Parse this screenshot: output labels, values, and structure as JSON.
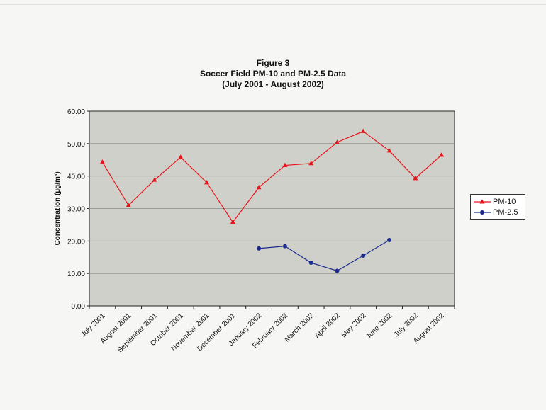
{
  "figure": {
    "label": "Figure 3",
    "title": "Soccer Field PM-10 and PM-2.5 Data",
    "subtitle": "(July 2001 - August 2002)"
  },
  "chart_data": {
    "type": "line",
    "ylabel": "Concentration (µg/m³)",
    "xlabel": "",
    "ylim": [
      0,
      60
    ],
    "yticks": [
      "0.00",
      "10.00",
      "20.00",
      "30.00",
      "40.00",
      "50.00",
      "60.00"
    ],
    "grid": true,
    "legend_position": "right",
    "categories": [
      "July 2001",
      "August 2001",
      "September 2001",
      "October 2001",
      "November 2001",
      "December 2001",
      "January 2002",
      "February 2002",
      "March 2002",
      "April 2002",
      "May 2002",
      "June 2002",
      "July 2002",
      "August 2002"
    ],
    "series": [
      {
        "name": "PM-10",
        "color": "#e8141b",
        "marker": "triangle",
        "values": [
          44.3,
          31.0,
          38.8,
          45.8,
          38.0,
          25.8,
          36.5,
          43.3,
          43.9,
          50.4,
          53.8,
          47.8,
          39.3,
          46.5
        ]
      },
      {
        "name": "PM-2.5",
        "color": "#1c2c8c",
        "marker": "circle",
        "values": [
          null,
          null,
          null,
          null,
          null,
          null,
          17.7,
          18.4,
          13.3,
          10.8,
          15.5,
          20.3,
          null,
          null
        ]
      }
    ],
    "plot_background": "#cfd0ca"
  }
}
